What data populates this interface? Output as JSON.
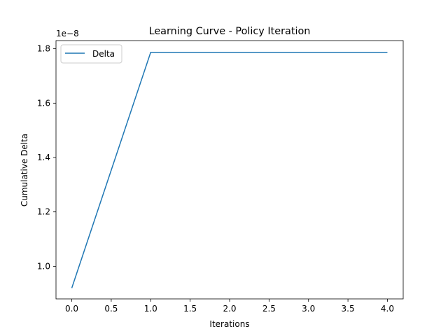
{
  "chart_data": {
    "type": "line",
    "title": "Learning Curve - Policy Iteration",
    "xlabel": "Iterations",
    "ylabel": "Cumulative Delta",
    "y_offset_label": "1e−8",
    "x": [
      0,
      1,
      2,
      3,
      4
    ],
    "series": [
      {
        "name": "Delta",
        "color": "#1f77b4",
        "values": [
          9.2e-09,
          1.787e-08,
          1.787e-08,
          1.787e-08,
          1.787e-08
        ]
      }
    ],
    "xlim": [
      -0.2,
      4.2
    ],
    "ylim": [
      8.8e-09,
      1.83e-08
    ],
    "x_ticks": [
      0.0,
      0.5,
      1.0,
      1.5,
      2.0,
      2.5,
      3.0,
      3.5,
      4.0
    ],
    "x_tick_labels": [
      "0.0",
      "0.5",
      "1.0",
      "1.5",
      "2.0",
      "2.5",
      "3.0",
      "3.5",
      "4.0"
    ],
    "y_ticks": [
      1.0,
      1.2,
      1.4,
      1.6,
      1.8
    ],
    "y_tick_labels": [
      "1.0",
      "1.2",
      "1.4",
      "1.6",
      "1.8"
    ],
    "y_tick_scale": 1e-08,
    "grid": false,
    "legend_position": "upper-left"
  }
}
